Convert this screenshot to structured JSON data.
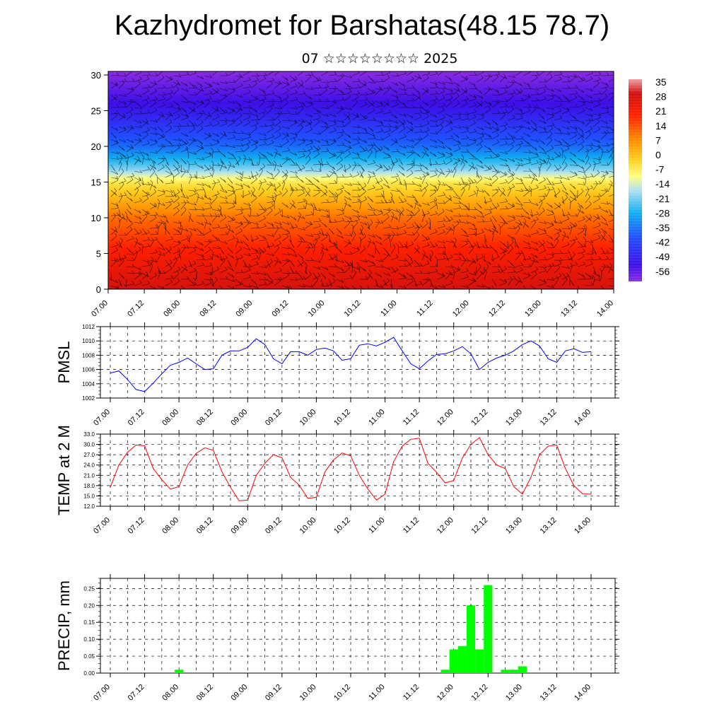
{
  "title": "Kazhydromet for Barshatas(48.15 78.7)",
  "subtitle": "07 ☆☆☆☆☆☆☆☆ 2025",
  "time_labels": [
    "07.00",
    "07.12",
    "08.00",
    "08.12",
    "09.00",
    "09.12",
    "10.00",
    "10.12",
    "11.00",
    "11.12",
    "12.00",
    "12.12",
    "13.00",
    "13.12",
    "14.00"
  ],
  "colors": {
    "pmsl_line": "#0000ff",
    "temp_line": "#ff0000",
    "precip_bar": "#00ff00",
    "grid": "#000000"
  },
  "chart_data": [
    {
      "type": "heatmap",
      "y_ticks": [
        0,
        5,
        10,
        15,
        20,
        25,
        30
      ],
      "ylim": [
        0,
        30.5
      ],
      "colorbar_labels": [
        "35",
        "28",
        "21",
        "14",
        "7",
        "0",
        "-7",
        "-14",
        "-21",
        "-28",
        "-35",
        "-42",
        "-49",
        "-56"
      ],
      "colorbar_range": [
        -60,
        38
      ],
      "temperature_profile": [
        {
          "h": 0,
          "t": 30
        },
        {
          "h": 5,
          "t": 22
        },
        {
          "h": 10,
          "t": 12
        },
        {
          "h": 15,
          "t": -5
        },
        {
          "h": 17,
          "t": -20
        },
        {
          "h": 20,
          "t": -35
        },
        {
          "h": 25,
          "t": -50
        },
        {
          "h": 30.5,
          "t": -60
        }
      ],
      "overlay": "wind barbs"
    },
    {
      "type": "line",
      "ylabel": "PMSL",
      "ylim": [
        1002,
        1012
      ],
      "y_ticks": [
        1002,
        1004,
        1006,
        1008,
        1010,
        1012
      ],
      "x_step_hours": 3,
      "values": [
        1005.5,
        1005.8,
        1004.6,
        1003.2,
        1002.9,
        1004.1,
        1005.4,
        1006.6,
        1007.0,
        1007.6,
        1006.8,
        1006.0,
        1006.1,
        1008.0,
        1008.6,
        1008.6,
        1009.1,
        1010.3,
        1009.5,
        1007.5,
        1006.8,
        1008.5,
        1008.5,
        1008.0,
        1008.8,
        1009.0,
        1008.6,
        1007.3,
        1007.5,
        1009.4,
        1009.6,
        1009.3,
        1009.8,
        1010.5,
        1008.6,
        1006.8,
        1006.1,
        1007.2,
        1008.1,
        1008.2,
        1008.6,
        1009.2,
        1008.2,
        1006.0,
        1007.0,
        1007.6,
        1008.0,
        1008.6,
        1009.5,
        1010.0,
        1009.3,
        1007.5,
        1007.0,
        1008.6,
        1008.9,
        1008.4,
        1008.5
      ]
    },
    {
      "type": "line",
      "ylabel": "TEMP at 2 M",
      "ylim": [
        12,
        33
      ],
      "y_ticks": [
        "12.0",
        "15.0",
        "18.0",
        "21.0",
        "24.0",
        "27.0",
        "30.0",
        "33.0"
      ],
      "x_step_hours": 3,
      "values": [
        17.5,
        24,
        27.7,
        29.8,
        29.6,
        23,
        19.7,
        17,
        17.7,
        24,
        27.4,
        29,
        28.3,
        22,
        17.5,
        13.6,
        13.8,
        21,
        24.5,
        27,
        26.1,
        20.4,
        18.2,
        14.3,
        14.6,
        22,
        25.5,
        27.5,
        26.7,
        21,
        17,
        13.8,
        15.5,
        25,
        29.5,
        31.5,
        31.8,
        24.5,
        21.9,
        18.8,
        19.5,
        26,
        30,
        32,
        27,
        24,
        23,
        17.7,
        15.5,
        20.5,
        27,
        29.5,
        29.8,
        23,
        18,
        15.6,
        15.5
      ]
    },
    {
      "type": "bar",
      "ylabel": "PRECIP, mm",
      "ylim": [
        0,
        0.28
      ],
      "y_ticks": [
        "0.00",
        "0.05",
        "0.10",
        "0.15",
        "0.20",
        "0.25"
      ],
      "bars": [
        {
          "x": 24,
          "value": 0.01
        },
        {
          "x": 117,
          "value": 0.01
        },
        {
          "x": 120,
          "value": 0.07
        },
        {
          "x": 123,
          "value": 0.08
        },
        {
          "x": 126,
          "value": 0.2
        },
        {
          "x": 129,
          "value": 0.07
        },
        {
          "x": 132,
          "value": 0.26
        },
        {
          "x": 138,
          "value": 0.01
        },
        {
          "x": 141,
          "value": 0.01
        },
        {
          "x": 144,
          "value": 0.02
        }
      ]
    }
  ]
}
